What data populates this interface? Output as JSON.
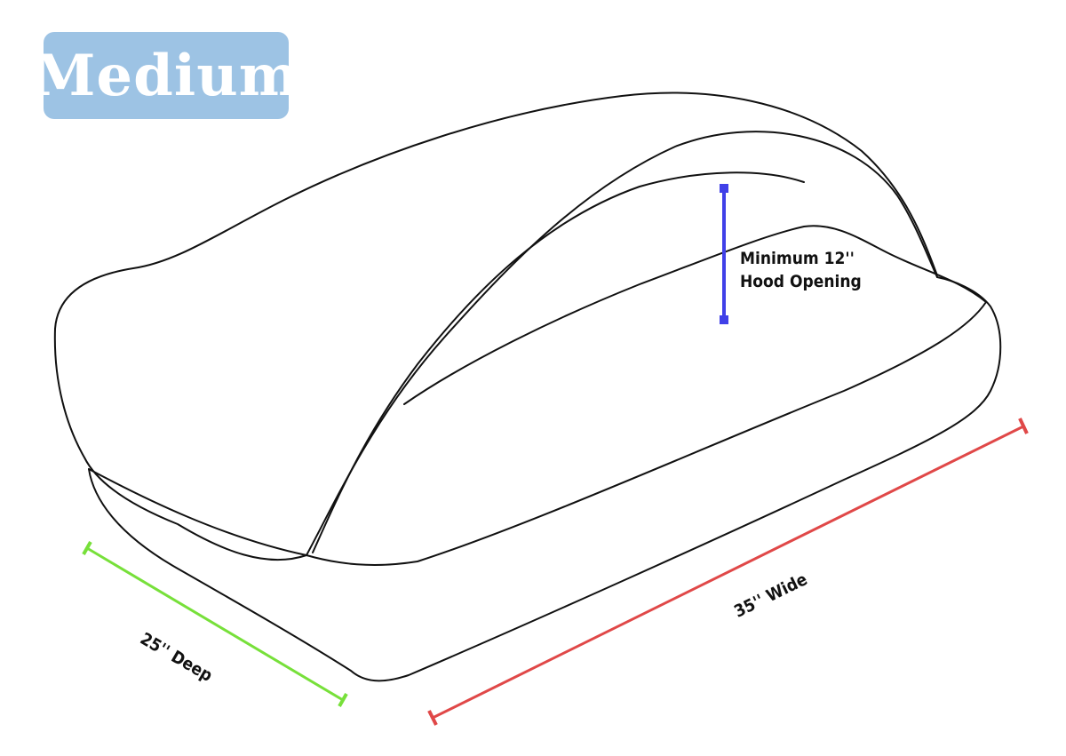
{
  "size_badge": {
    "label": "Medium",
    "color": "#9dc3e4"
  },
  "measurements": {
    "hood": {
      "line1": "Minimum 12''",
      "line2": "Hood Opening",
      "color": "#4040e8"
    },
    "depth": {
      "label": "25'' Deep",
      "color": "#77e03a"
    },
    "width": {
      "label": "35'' Wide",
      "color": "#e04848"
    }
  }
}
